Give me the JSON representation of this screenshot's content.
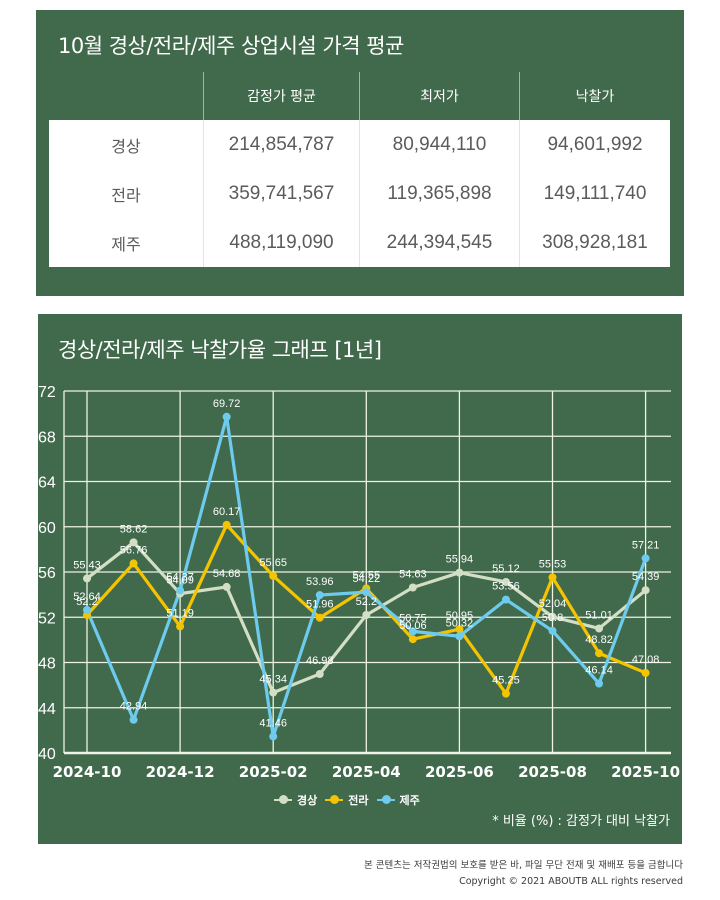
{
  "table_panel": {
    "title": "10월 경상/전라/제주 상업시설 가격 평균",
    "headers": [
      "",
      "감정가 평균",
      "최저가",
      "낙찰가"
    ],
    "rows": [
      {
        "region": "경상",
        "appraisal_avg": "214,854,787",
        "min_price": "80,944,110",
        "winning_bid": "94,601,992"
      },
      {
        "region": "전라",
        "appraisal_avg": "359,741,567",
        "min_price": "119,365,898",
        "winning_bid": "149,111,740"
      },
      {
        "region": "제주",
        "appraisal_avg": "488,119,090",
        "min_price": "244,394,545",
        "winning_bid": "308,928,181"
      }
    ]
  },
  "chart_panel": {
    "title": "경상/전라/제주 낙찰가율 그래프 [1년]",
    "footnote": "* 비율 (%) : 감정가 대비 낙찰가"
  },
  "footer": {
    "notice": "본 콘텐츠는 저작권법의 보호를 받은 바, 파일 무단 전재 및 재배포 등을 금합니다",
    "copyright": "Copyright © 2021 ABOUTB ALL rights reserved"
  },
  "chart_data": {
    "type": "line",
    "title": "경상/전라/제주 낙찰가율 그래프 [1년]",
    "xlabel": "",
    "ylabel": "",
    "x": [
      "2024-10",
      "2024-11",
      "2024-12",
      "2025-01",
      "2025-02",
      "2025-03",
      "2025-04",
      "2025-05",
      "2025-06",
      "2025-07",
      "2025-08",
      "2025-09",
      "2025-10"
    ],
    "xtick_labels": [
      "2024-10",
      "2024-12",
      "2025-02",
      "2025-04",
      "2025-06",
      "2025-08",
      "2025-10"
    ],
    "ylim": [
      40,
      72
    ],
    "yticks": [
      40,
      44,
      48,
      52,
      56,
      60,
      64,
      68,
      72
    ],
    "grid": true,
    "legend_position": "bottom-center",
    "series": [
      {
        "name": "경상",
        "color": "#d3dfc4",
        "values": [
          55.43,
          58.62,
          54.09,
          54.68,
          45.34,
          46.98,
          52.2,
          54.63,
          55.94,
          55.12,
          52.04,
          51.01,
          54.39
        ]
      },
      {
        "name": "전라",
        "color": "#f5c400",
        "values": [
          52.2,
          56.76,
          51.19,
          60.17,
          55.65,
          51.96,
          54.55,
          50.06,
          50.95,
          45.25,
          55.53,
          48.82,
          47.08
        ]
      },
      {
        "name": "제주",
        "color": "#6ecbee",
        "values": [
          52.64,
          42.94,
          54.37,
          69.72,
          41.46,
          53.96,
          54.22,
          50.75,
          50.32,
          53.56,
          50.8,
          46.14,
          57.21
        ]
      }
    ]
  }
}
